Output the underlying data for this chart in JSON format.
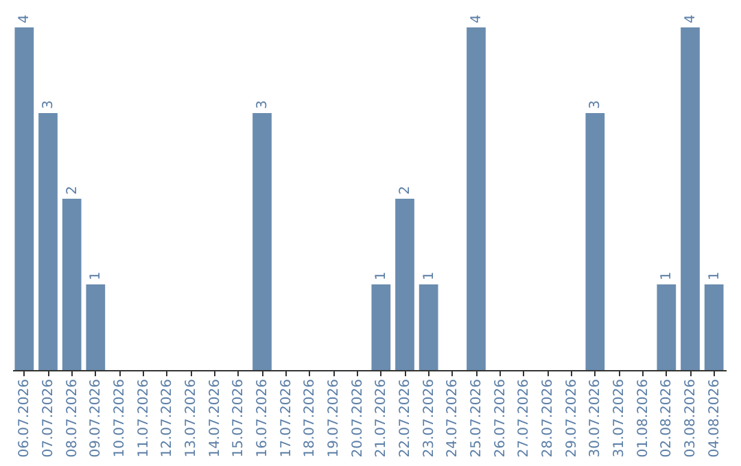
{
  "chart_data": {
    "type": "bar",
    "categories": [
      "06.07.2026",
      "07.07.2026",
      "08.07.2026",
      "09.07.2026",
      "10.07.2026",
      "11.07.2026",
      "12.07.2026",
      "13.07.2026",
      "14.07.2026",
      "15.07.2026",
      "16.07.2026",
      "17.07.2026",
      "18.07.2026",
      "19.07.2026",
      "20.07.2026",
      "21.07.2026",
      "22.07.2026",
      "23.07.2026",
      "24.07.2026",
      "25.07.2026",
      "26.07.2026",
      "27.07.2026",
      "28.07.2026",
      "29.07.2026",
      "30.07.2026",
      "31.07.2026",
      "01.08.2026",
      "02.08.2026",
      "03.08.2026",
      "04.08.2026"
    ],
    "values": [
      4,
      3,
      2,
      1,
      0,
      0,
      0,
      0,
      0,
      0,
      3,
      0,
      0,
      0,
      0,
      1,
      2,
      1,
      0,
      4,
      0,
      0,
      0,
      0,
      3,
      0,
      0,
      1,
      4,
      1
    ],
    "value_labels": [
      "4",
      "3",
      "2",
      "1",
      null,
      null,
      null,
      null,
      null,
      null,
      "3",
      null,
      null,
      null,
      null,
      "1",
      "2",
      "1",
      null,
      "4",
      null,
      null,
      null,
      null,
      "3",
      null,
      null,
      "1",
      "4",
      "1"
    ],
    "color": "#6a8caf",
    "tick_labels": "x"
  }
}
